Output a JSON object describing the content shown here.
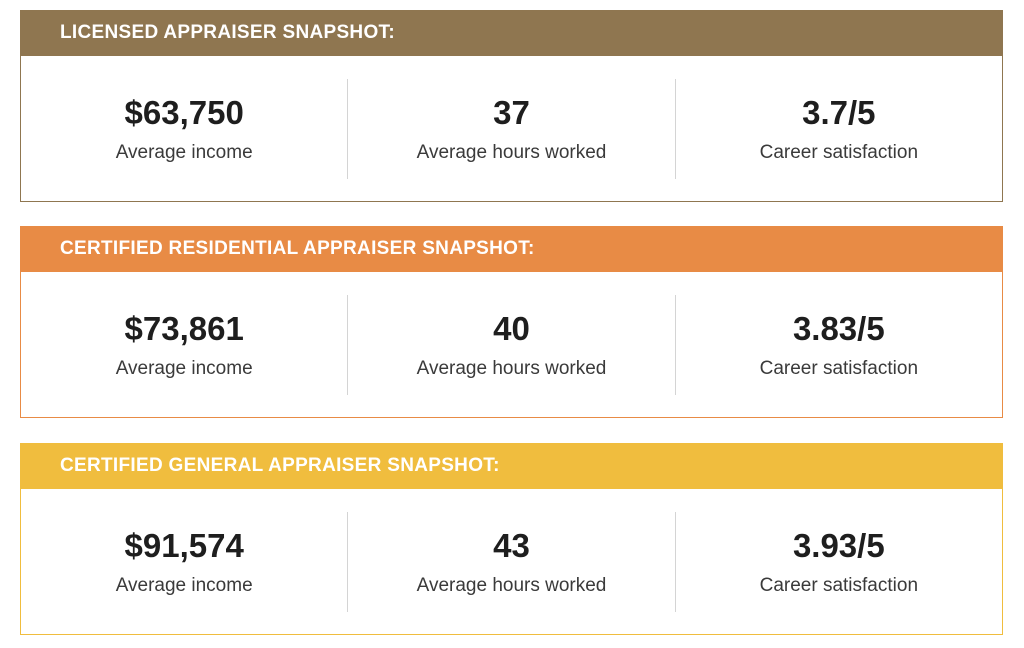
{
  "snapshots": [
    {
      "title": "LICENSED APPRAISER SNAPSHOT:",
      "color": "#8f7650",
      "stats": [
        {
          "value": "$63,750",
          "label": "Average income"
        },
        {
          "value": "37",
          "label": "Average hours worked"
        },
        {
          "value": "3.7/5",
          "label": "Career satisfaction"
        }
      ]
    },
    {
      "title": "CERTIFIED RESIDENTIAL APPRAISER SNAPSHOT:",
      "color": "#e88b45",
      "stats": [
        {
          "value": "$73,861",
          "label": "Average income"
        },
        {
          "value": "40",
          "label": "Average hours worked"
        },
        {
          "value": "3.83/5",
          "label": "Career satisfaction"
        }
      ]
    },
    {
      "title": "CERTIFIED GENERAL APPRAISER SNAPSHOT:",
      "color": "#f0bd3e",
      "stats": [
        {
          "value": "$91,574",
          "label": "Average income"
        },
        {
          "value": "43",
          "label": "Average hours worked"
        },
        {
          "value": "3.93/5",
          "label": "Career satisfaction"
        }
      ]
    }
  ]
}
